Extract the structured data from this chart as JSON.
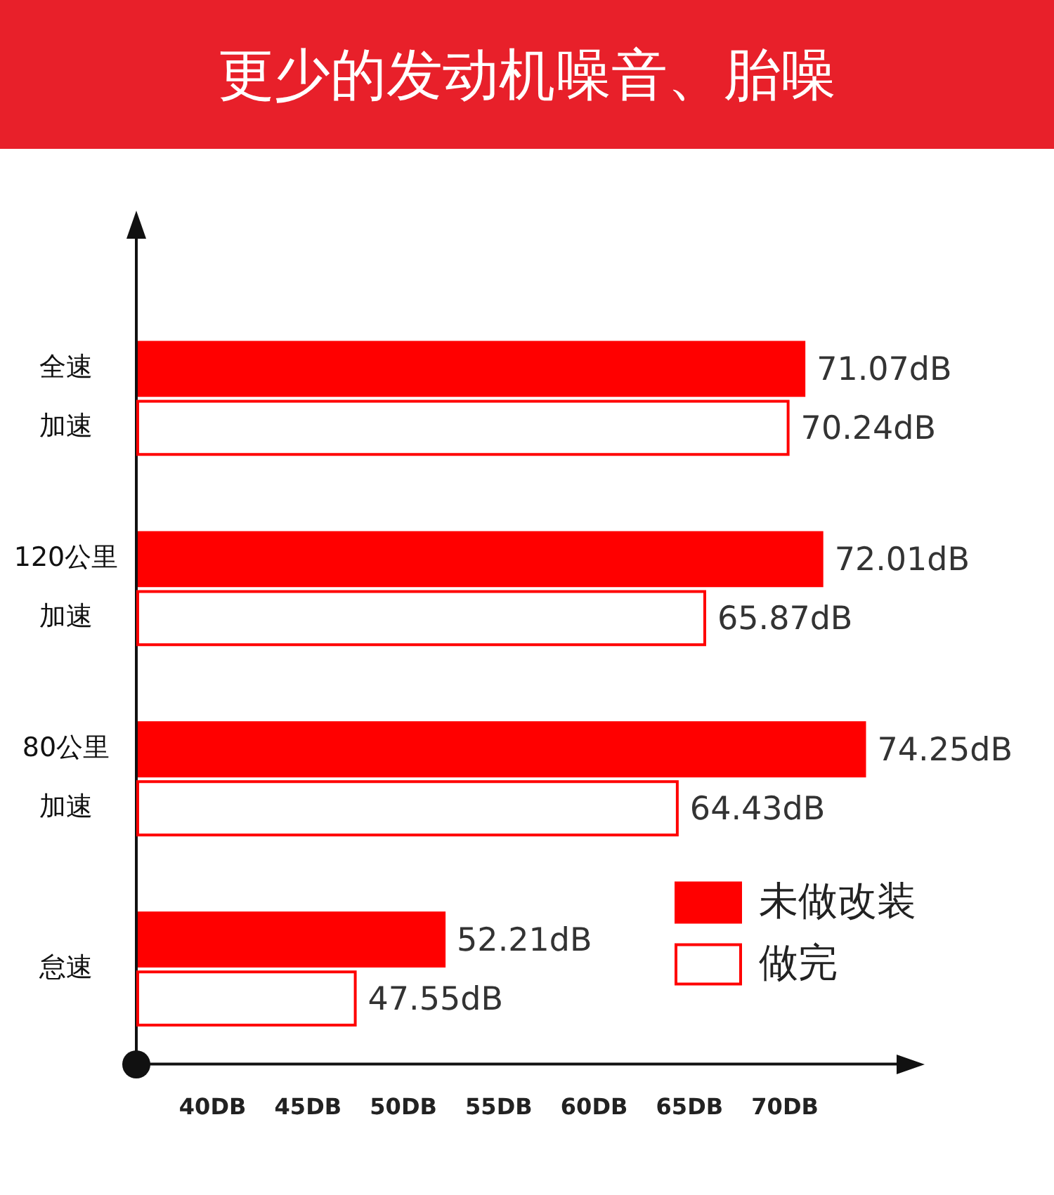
{
  "chart_data": {
    "type": "bar",
    "orientation": "horizontal",
    "title": "更少的发动机噪音、胎噪",
    "categories": [
      "全速加速",
      "120公里加速",
      "80公里加速",
      "怠速"
    ],
    "series": [
      {
        "name": "未做改装",
        "color": "#ff0000",
        "values": [
          71.07,
          72.01,
          74.25,
          52.21
        ],
        "value_labels": [
          "71.07dB",
          "72.01dB",
          "74.25dB",
          "52.21dB"
        ]
      },
      {
        "name": "做完",
        "color": "#ff0000",
        "values": [
          70.24,
          65.87,
          64.43,
          47.55
        ],
        "value_labels": [
          "70.24dB",
          "65.87dB",
          "64.43dB",
          "47.55dB"
        ]
      }
    ],
    "xlim": [
      36,
      76
    ],
    "xticks": [
      {
        "value": 40,
        "label": "40DB"
      },
      {
        "value": 45,
        "label": "45DB"
      },
      {
        "value": 50,
        "label": "50DB"
      },
      {
        "value": 55,
        "label": "55DB"
      },
      {
        "value": 60,
        "label": "60DB"
      },
      {
        "value": 65,
        "label": "65DB"
      },
      {
        "value": 70,
        "label": "70DB"
      }
    ],
    "grid": false,
    "legend": "bottom right"
  }
}
